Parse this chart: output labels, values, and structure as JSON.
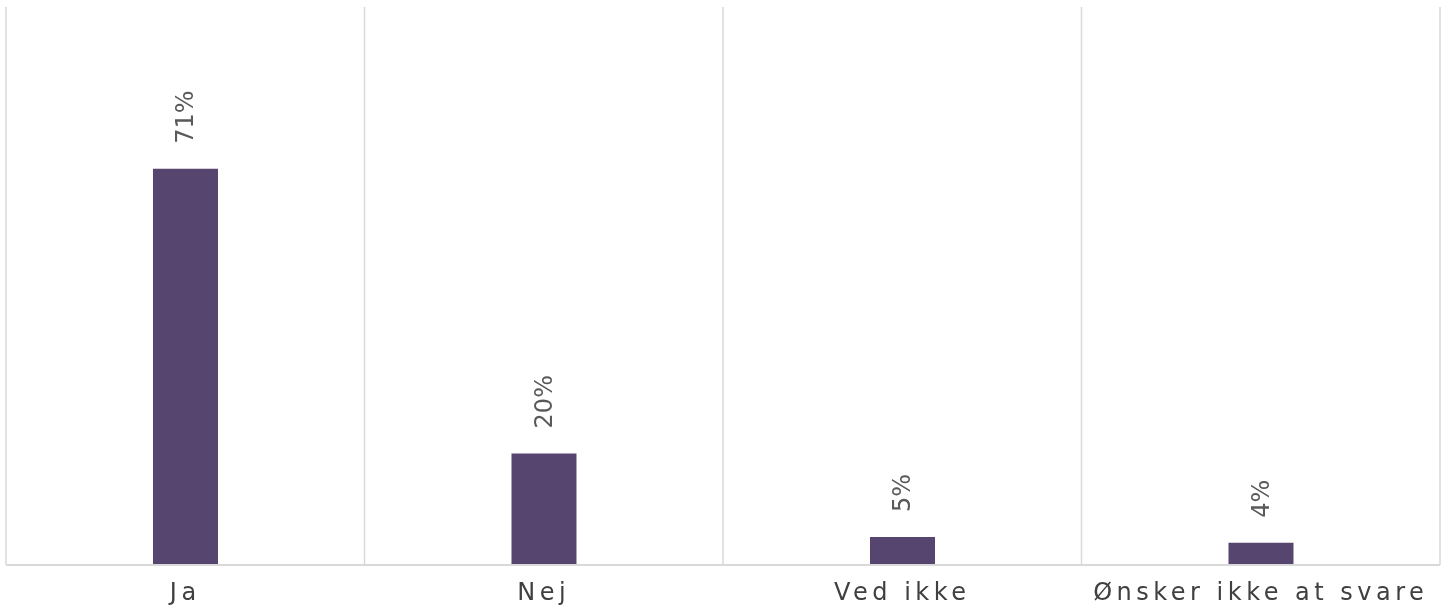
{
  "chart_data": {
    "type": "bar",
    "categories": [
      "Ja",
      "Nej",
      "Ved ikke",
      "Ønsker ikke at svare"
    ],
    "values": [
      71,
      20,
      5,
      4
    ],
    "color": "#56456f",
    "value_labels": [
      "71%",
      "20%",
      "5%",
      "4%"
    ],
    "ylim": [
      0,
      100
    ],
    "grid": "x",
    "tick_labels": "x"
  }
}
